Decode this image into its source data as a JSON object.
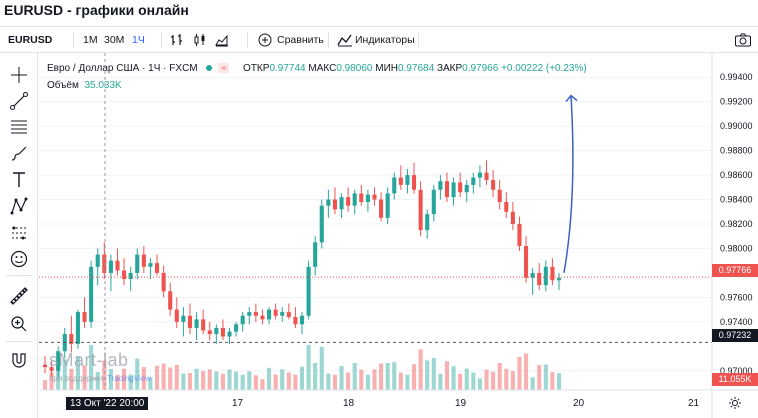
{
  "page": {
    "title": "EURUSD - графики онлайн"
  },
  "toolbar": {
    "symbol": "EURUSD",
    "timeframes": [
      "1M",
      "30M",
      "1Ч"
    ],
    "active_timeframe": "1Ч",
    "compare_label": "Сравнить",
    "indicators_label": "Индикаторы"
  },
  "legend": {
    "instrument": "Евро / Доллар США · 1Ч · FXCM",
    "open_label": "ОТКР",
    "open_value": "0.97744",
    "high_label": "МАКС",
    "high_value": "0.98060",
    "low_label": "МИН",
    "low_value": "0.97684",
    "close_label": "ЗАКР",
    "close_value": "0.97966",
    "change_value": "+0.00222 (+0.23%)",
    "volume_label": "Объём",
    "volume_value": "35.033K"
  },
  "watermark": {
    "brand": "sMart-lab",
    "sub_prefix": "при поддержке",
    "sub_brand": "TradingView"
  },
  "price_tags": {
    "current": "0.97766",
    "line": "0.97232",
    "volume": "11.055K"
  },
  "colors": {
    "up": "#26a69a",
    "down": "#ef5350",
    "accent": "#2962ff",
    "arrow": "#3d5fc4"
  },
  "icons": [
    "crosshair-icon",
    "trend-line-icon",
    "fib-icon",
    "brush-icon",
    "text-icon",
    "pattern-icon",
    "forecast-icon",
    "emoji-icon",
    "ruler-icon",
    "zoom-icon",
    "magnet-icon"
  ],
  "chart_data": {
    "type": "candlestick",
    "symbol": "EURUSD",
    "y_ticks": [
      "0.99400",
      "0.99200",
      "0.99000",
      "0.98800",
      "0.98600",
      "0.98400",
      "0.98200",
      "0.98000",
      "0.97600",
      "0.97400",
      "0.97000"
    ],
    "ylim": [
      0.969,
      0.995
    ],
    "x_labels": [
      "13 Окт '22  20:00",
      "17",
      "18",
      "19",
      "20",
      "21"
    ],
    "annotation": "upward arrow projection from last candle",
    "candles": [
      [
        0.9705,
        0.9712,
        0.9698,
        0.9703
      ],
      [
        0.9703,
        0.9708,
        0.9695,
        0.97
      ],
      [
        0.97,
        0.972,
        0.9695,
        0.9716
      ],
      [
        0.9716,
        0.9735,
        0.971,
        0.973
      ],
      [
        0.973,
        0.9745,
        0.9715,
        0.9722
      ],
      [
        0.9722,
        0.975,
        0.9718,
        0.9748
      ],
      [
        0.9748,
        0.976,
        0.9735,
        0.974
      ],
      [
        0.974,
        0.979,
        0.9735,
        0.9785
      ],
      [
        0.9785,
        0.98,
        0.977,
        0.9795
      ],
      [
        0.9795,
        0.9805,
        0.9775,
        0.978
      ],
      [
        0.978,
        0.9795,
        0.9765,
        0.979
      ],
      [
        0.979,
        0.98,
        0.9778,
        0.9782
      ],
      [
        0.9782,
        0.9792,
        0.977,
        0.9775
      ],
      [
        0.9775,
        0.9785,
        0.9765,
        0.978
      ],
      [
        0.978,
        0.98,
        0.9775,
        0.9795
      ],
      [
        0.9795,
        0.9802,
        0.978,
        0.9785
      ],
      [
        0.9785,
        0.9792,
        0.9775,
        0.9788
      ],
      [
        0.9788,
        0.9795,
        0.9778,
        0.978
      ],
      [
        0.978,
        0.9786,
        0.976,
        0.9765
      ],
      [
        0.9765,
        0.9772,
        0.9745,
        0.975
      ],
      [
        0.975,
        0.976,
        0.9735,
        0.974
      ],
      [
        0.974,
        0.9752,
        0.9728,
        0.9745
      ],
      [
        0.9745,
        0.9755,
        0.973,
        0.9735
      ],
      [
        0.9735,
        0.9748,
        0.9725,
        0.9742
      ],
      [
        0.9742,
        0.975,
        0.973,
        0.9733
      ],
      [
        0.9733,
        0.974,
        0.9725,
        0.973
      ],
      [
        0.973,
        0.9738,
        0.9722,
        0.9735
      ],
      [
        0.9735,
        0.9742,
        0.9725,
        0.9728
      ],
      [
        0.9728,
        0.9735,
        0.9722,
        0.9732
      ],
      [
        0.9732,
        0.974,
        0.9728,
        0.9738
      ],
      [
        0.9738,
        0.9748,
        0.9732,
        0.9745
      ],
      [
        0.9745,
        0.9752,
        0.9738,
        0.9748
      ],
      [
        0.9748,
        0.9755,
        0.974,
        0.9745
      ],
      [
        0.9745,
        0.975,
        0.9738,
        0.9742
      ],
      [
        0.9742,
        0.9752,
        0.9738,
        0.975
      ],
      [
        0.975,
        0.9755,
        0.9742,
        0.9745
      ],
      [
        0.9745,
        0.9752,
        0.974,
        0.9748
      ],
      [
        0.9748,
        0.9755,
        0.9742,
        0.9744
      ],
      [
        0.9744,
        0.9752,
        0.9735,
        0.9738
      ],
      [
        0.9738,
        0.9748,
        0.973,
        0.9745
      ],
      [
        0.9745,
        0.979,
        0.9742,
        0.9785
      ],
      [
        0.9785,
        0.981,
        0.9778,
        0.9805
      ],
      [
        0.9805,
        0.984,
        0.98,
        0.9835
      ],
      [
        0.9835,
        0.9848,
        0.9825,
        0.984
      ],
      [
        0.984,
        0.985,
        0.9828,
        0.9832
      ],
      [
        0.9832,
        0.9845,
        0.9825,
        0.9842
      ],
      [
        0.9842,
        0.985,
        0.983,
        0.9835
      ],
      [
        0.9835,
        0.9848,
        0.9828,
        0.9845
      ],
      [
        0.9845,
        0.9852,
        0.9835,
        0.9838
      ],
      [
        0.9838,
        0.9848,
        0.983,
        0.9844
      ],
      [
        0.9844,
        0.985,
        0.9835,
        0.984
      ],
      [
        0.984,
        0.9846,
        0.9822,
        0.9825
      ],
      [
        0.9825,
        0.985,
        0.982,
        0.9845
      ],
      [
        0.9845,
        0.9862,
        0.984,
        0.9858
      ],
      [
        0.9858,
        0.9868,
        0.9848,
        0.9852
      ],
      [
        0.9852,
        0.9865,
        0.9845,
        0.986
      ],
      [
        0.986,
        0.987,
        0.9845,
        0.9848
      ],
      [
        0.9848,
        0.9855,
        0.981,
        0.9815
      ],
      [
        0.9815,
        0.9832,
        0.9808,
        0.9828
      ],
      [
        0.9828,
        0.9852,
        0.9822,
        0.9848
      ],
      [
        0.9848,
        0.986,
        0.984,
        0.9855
      ],
      [
        0.9855,
        0.9862,
        0.9838,
        0.9842
      ],
      [
        0.9842,
        0.9858,
        0.9835,
        0.9854
      ],
      [
        0.9854,
        0.9862,
        0.9842,
        0.9846
      ],
      [
        0.9846,
        0.9856,
        0.9838,
        0.9852
      ],
      [
        0.9852,
        0.9862,
        0.9845,
        0.9858
      ],
      [
        0.9858,
        0.9868,
        0.985,
        0.9862
      ],
      [
        0.9862,
        0.9872,
        0.9852,
        0.9856
      ],
      [
        0.9856,
        0.9864,
        0.9842,
        0.9848
      ],
      [
        0.9848,
        0.9856,
        0.9832,
        0.9838
      ],
      [
        0.9838,
        0.9846,
        0.9825,
        0.983
      ],
      [
        0.983,
        0.9838,
        0.9815,
        0.982
      ],
      [
        0.982,
        0.9826,
        0.9798,
        0.9802
      ],
      [
        0.9802,
        0.981,
        0.9772,
        0.9776
      ],
      [
        0.9776,
        0.9784,
        0.9762,
        0.978
      ],
      [
        0.978,
        0.9788,
        0.9766,
        0.977
      ],
      [
        0.977,
        0.979,
        0.9765,
        0.9785
      ],
      [
        0.9785,
        0.9792,
        0.977,
        0.9774
      ],
      [
        0.9774,
        0.978,
        0.9766,
        0.9776
      ]
    ]
  }
}
